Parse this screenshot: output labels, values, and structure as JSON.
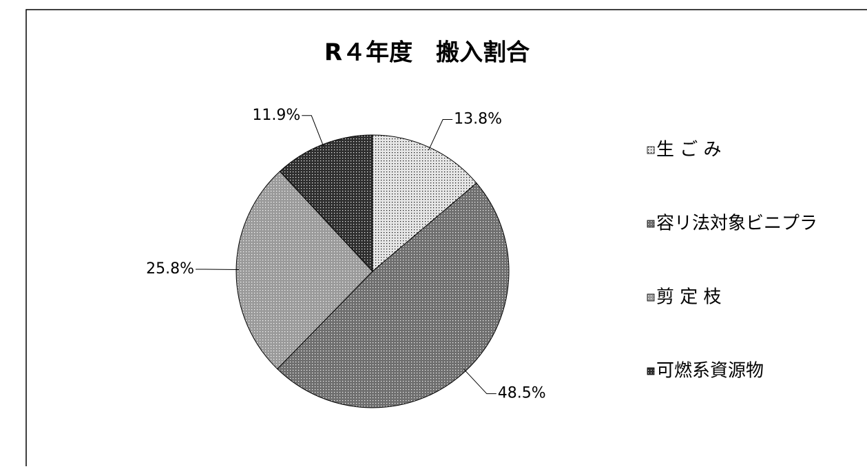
{
  "chart_data": {
    "type": "pie",
    "title": "R４年度　搬入割合",
    "categories": [
      "生 ご み",
      "容リ法対象ビニプラ",
      "剪 定 枝",
      "可燃系資源物"
    ],
    "values": [
      13.8,
      48.5,
      25.8,
      11.9
    ],
    "value_labels": [
      "13.8%",
      "48.5%",
      "25.8%",
      "11.9%"
    ],
    "colors": [
      "#e6e6e6",
      "#6e6e6e",
      "#9a9a9a",
      "#2e2e2e"
    ],
    "legend": "right"
  }
}
